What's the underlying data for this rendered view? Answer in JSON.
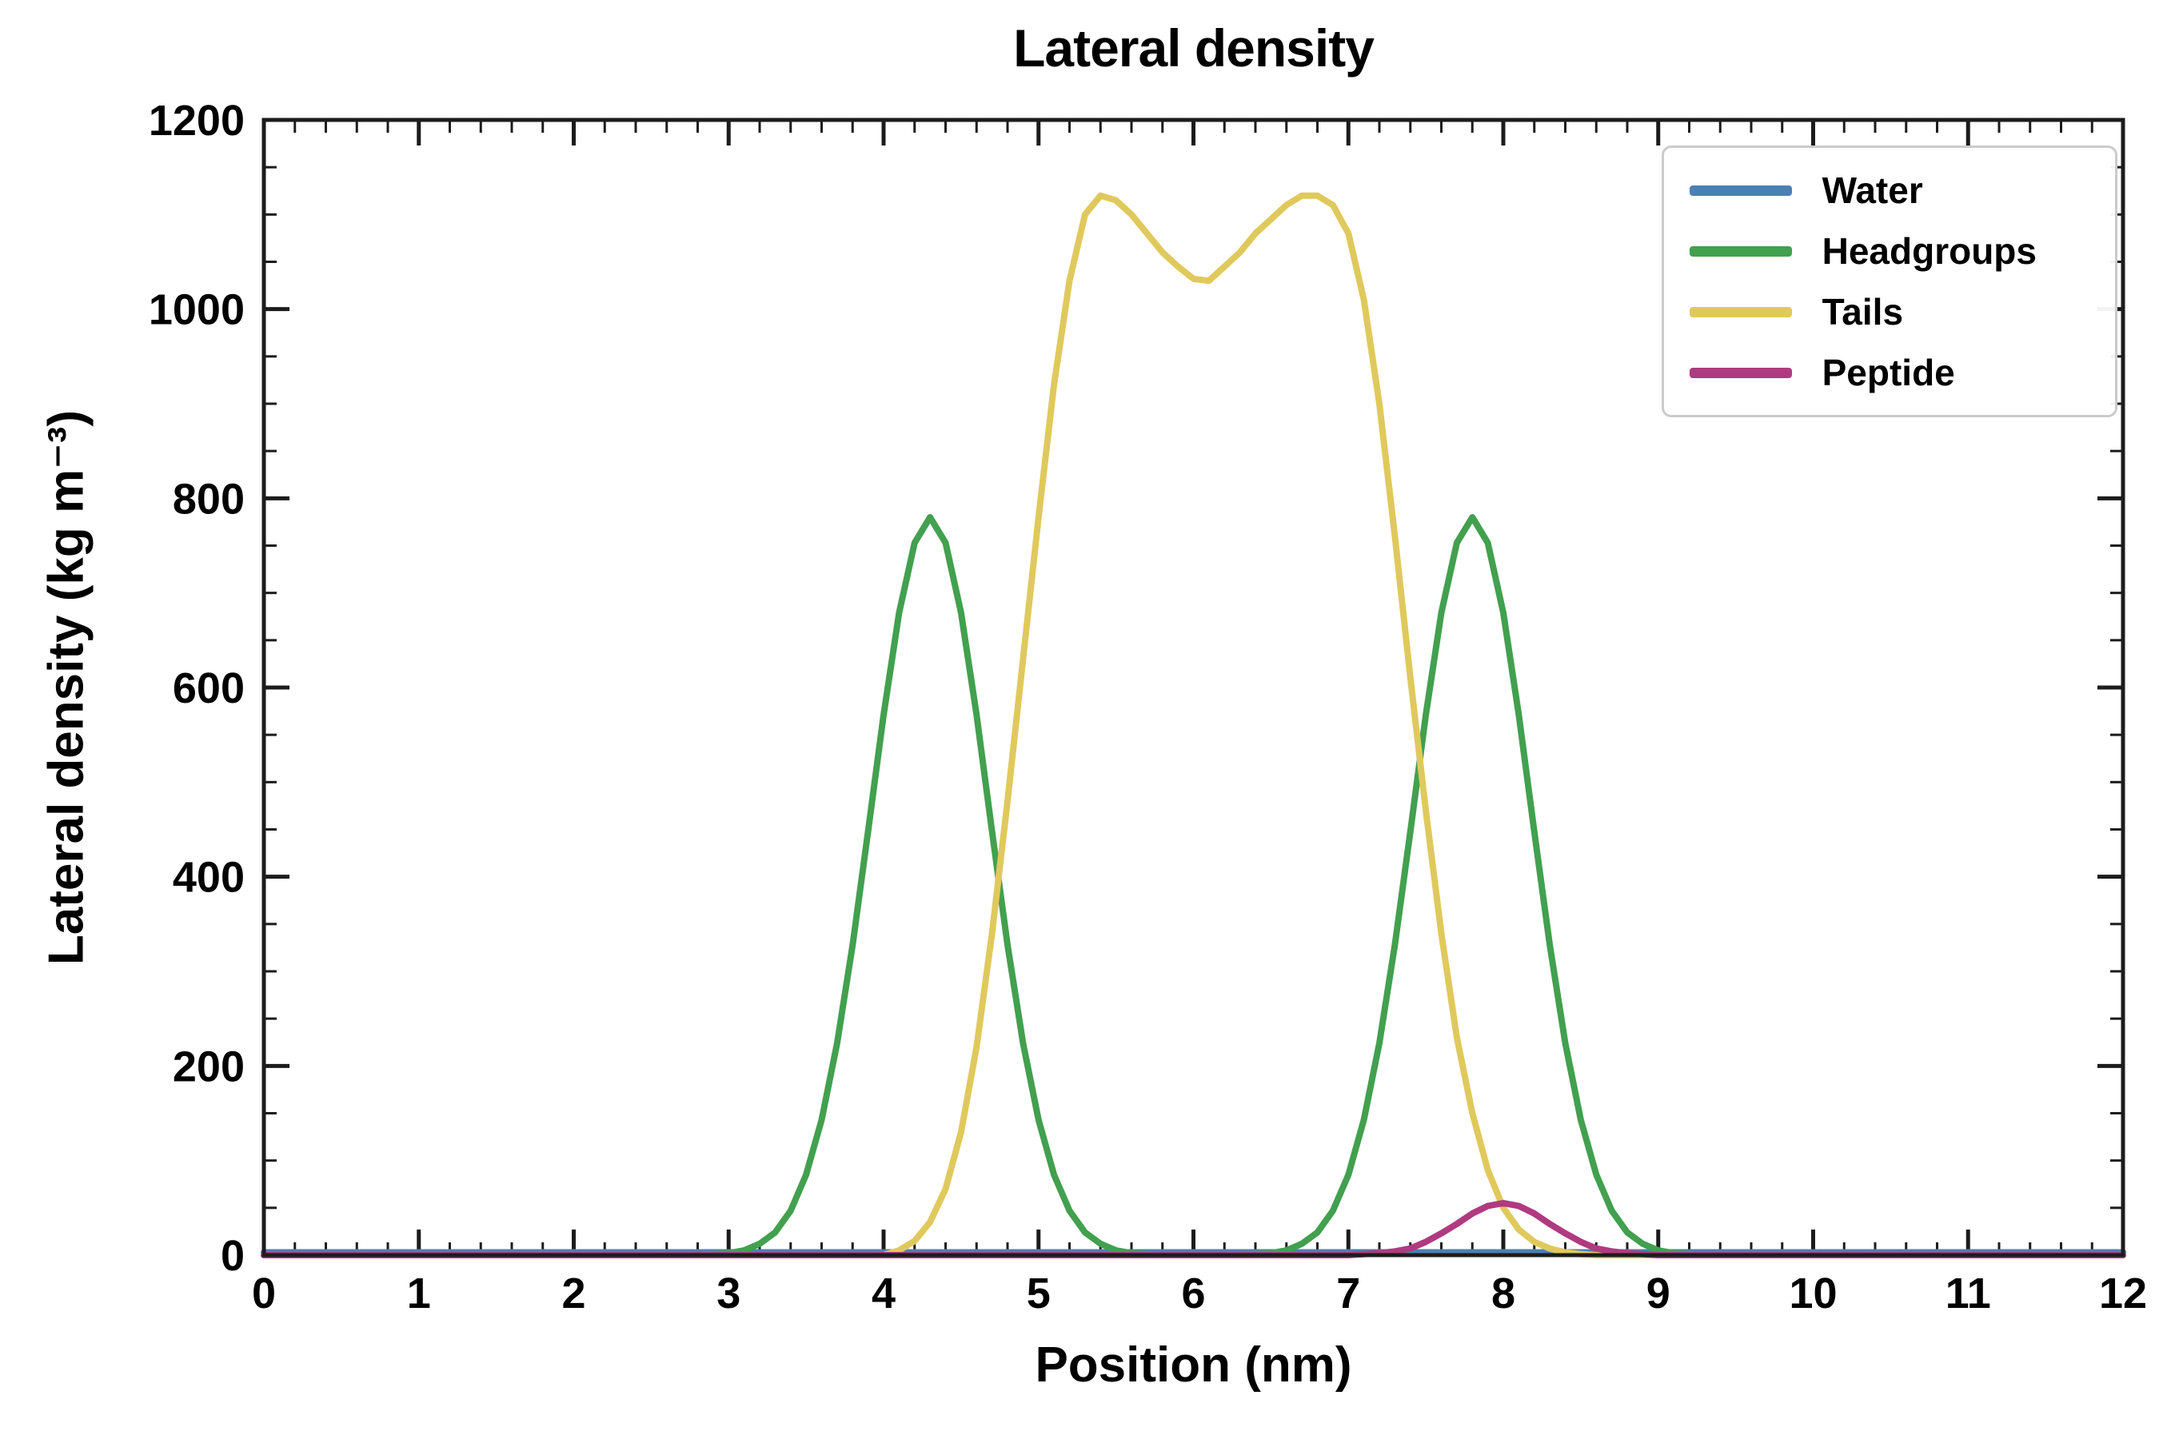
{
  "chart_data": {
    "type": "line",
    "title": "Lateral density",
    "xlabel": "Position (nm)",
    "ylabel": "Lateral density (kg m⁻³)",
    "xlim": [
      0,
      12
    ],
    "ylim": [
      0,
      1200
    ],
    "xticks": [
      0,
      1,
      2,
      3,
      4,
      5,
      6,
      7,
      8,
      9,
      10,
      11,
      12
    ],
    "yticks": [
      0,
      200,
      400,
      600,
      800,
      1000,
      1200
    ],
    "x_minor_step": 0.2,
    "y_minor_step": 50,
    "grid": false,
    "legend_position": "upper right",
    "frame_color": "#1c1c1c",
    "series": [
      {
        "name": "Water",
        "color": "#4a80b4",
        "x": [
          0,
          12
        ],
        "y": [
          3,
          3
        ]
      },
      {
        "name": "Headgroups",
        "color": "#42a04f",
        "x": [
          0.0,
          2.8,
          2.9,
          3.0,
          3.1,
          3.2,
          3.3,
          3.4,
          3.5,
          3.6,
          3.7,
          3.8,
          3.9,
          4.0,
          4.1,
          4.2,
          4.3,
          4.4,
          4.5,
          4.6,
          4.7,
          4.8,
          4.9,
          5.0,
          5.1,
          5.2,
          5.3,
          5.4,
          5.5,
          5.6,
          5.7,
          5.8,
          6.3,
          6.4,
          6.5,
          6.6,
          6.7,
          6.8,
          6.9,
          7.0,
          7.1,
          7.2,
          7.3,
          7.4,
          7.5,
          7.6,
          7.7,
          7.8,
          7.9,
          8.0,
          8.1,
          8.2,
          8.3,
          8.4,
          8.5,
          8.6,
          8.7,
          8.8,
          8.9,
          9.0,
          9.1,
          9.2,
          9.3,
          12.0
        ],
        "y": [
          0,
          0,
          1,
          2,
          5,
          12,
          24,
          47,
          85,
          143,
          224,
          328,
          448,
          571,
          679,
          753,
          780,
          753,
          679,
          571,
          448,
          328,
          224,
          143,
          85,
          47,
          24,
          12,
          5,
          2,
          1,
          0,
          0,
          1,
          2,
          5,
          12,
          24,
          47,
          85,
          143,
          224,
          328,
          448,
          571,
          679,
          753,
          780,
          753,
          679,
          571,
          448,
          328,
          224,
          143,
          85,
          47,
          24,
          12,
          5,
          2,
          1,
          0,
          0
        ]
      },
      {
        "name": "Tails",
        "color": "#e0c95c",
        "x": [
          0.0,
          4.0,
          4.1,
          4.2,
          4.3,
          4.4,
          4.5,
          4.6,
          4.7,
          4.8,
          4.9,
          5.0,
          5.1,
          5.2,
          5.3,
          5.4,
          5.5,
          5.6,
          5.7,
          5.8,
          5.9,
          6.0,
          6.1,
          6.2,
          6.3,
          6.4,
          6.5,
          6.6,
          6.7,
          6.8,
          6.9,
          7.0,
          7.1,
          7.2,
          7.3,
          7.4,
          7.5,
          7.6,
          7.7,
          7.8,
          7.9,
          8.0,
          8.1,
          8.2,
          8.3,
          8.4,
          8.5,
          8.6,
          12.0
        ],
        "y": [
          0,
          0,
          5,
          15,
          35,
          70,
          130,
          220,
          340,
          480,
          630,
          780,
          920,
          1030,
          1100,
          1120,
          1115,
          1100,
          1080,
          1060,
          1045,
          1032,
          1030,
          1045,
          1060,
          1080,
          1095,
          1110,
          1120,
          1120,
          1110,
          1080,
          1010,
          900,
          760,
          610,
          470,
          340,
          230,
          150,
          90,
          50,
          27,
          14,
          7,
          3,
          1,
          0,
          0
        ]
      },
      {
        "name": "Peptide",
        "color": "#b03a80",
        "x": [
          0.0,
          7.0,
          7.1,
          7.2,
          7.3,
          7.4,
          7.5,
          7.6,
          7.7,
          7.8,
          7.9,
          8.0,
          8.1,
          8.2,
          8.3,
          8.4,
          8.5,
          8.6,
          8.7,
          8.8,
          8.9,
          9.0,
          12.0
        ],
        "y": [
          0,
          0,
          1,
          2,
          4,
          7,
          14,
          23,
          33,
          44,
          52,
          55,
          52,
          44,
          33,
          23,
          14,
          7,
          4,
          2,
          1,
          0,
          0
        ]
      }
    ]
  }
}
